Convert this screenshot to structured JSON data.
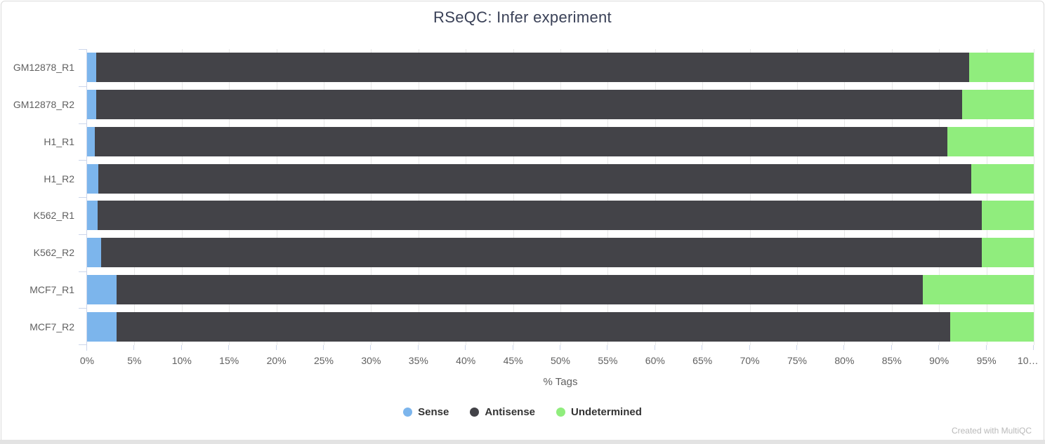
{
  "page": {
    "footer_credit": "Created with MultiQC"
  },
  "chart_data": {
    "type": "bar",
    "stacked": true,
    "orientation": "horizontal",
    "title": "RSeQC: Infer experiment",
    "xlabel": "% Tags",
    "xlim": [
      0,
      100
    ],
    "grid": true,
    "legend_position": "bottom",
    "categories": [
      "GM12878_R1",
      "GM12878_R2",
      "H1_R1",
      "H1_R2",
      "K562_R1",
      "K562_R2",
      "MCF7_R1",
      "MCF7_R2"
    ],
    "xtick_values": [
      0,
      5,
      10,
      15,
      20,
      25,
      30,
      35,
      40,
      45,
      50,
      55,
      60,
      65,
      70,
      75,
      80,
      85,
      90,
      95,
      100
    ],
    "xtick_labels": [
      "0%",
      "5%",
      "10%",
      "15%",
      "20%",
      "25%",
      "30%",
      "35%",
      "40%",
      "45%",
      "50%",
      "55%",
      "60%",
      "65%",
      "70%",
      "75%",
      "80%",
      "85%",
      "90%",
      "95%",
      "10…"
    ],
    "series": [
      {
        "name": "Sense",
        "color": "#7cb5ec",
        "values": [
          1.0,
          1.0,
          0.8,
          1.2,
          1.1,
          1.5,
          3.1,
          3.1
        ]
      },
      {
        "name": "Antisense",
        "color": "#434348",
        "values": [
          92.2,
          91.4,
          90.1,
          92.2,
          93.4,
          93.0,
          85.2,
          88.1
        ]
      },
      {
        "name": "Undetermined",
        "color": "#90ed7d",
        "values": [
          6.8,
          7.6,
          9.1,
          6.6,
          5.5,
          5.5,
          11.7,
          8.8
        ]
      }
    ]
  }
}
